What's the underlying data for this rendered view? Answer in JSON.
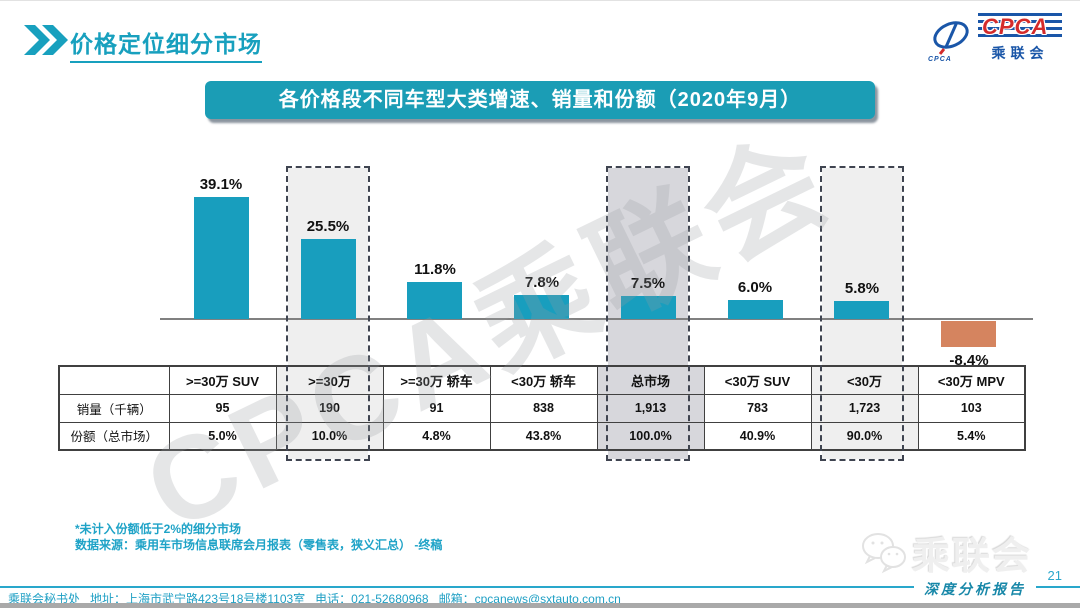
{
  "header": {
    "title": "价格定位细分市场",
    "banner": "各价格段不同车型大类增速、销量和份额（2020年9月）"
  },
  "logo": {
    "latin": "CPCA",
    "emblem_text": "CPCA",
    "chinese": "乘联会"
  },
  "chart_data": {
    "type": "bar",
    "title": "各价格段不同车型大类增速、销量和份额（2020年9月）",
    "categories": [
      ">=30万 SUV",
      ">=30万",
      ">=30万 轿车",
      "<30万 轿车",
      "总市场",
      "<30万 SUV",
      "<30万",
      "<30万 MPV"
    ],
    "values": [
      39.1,
      25.5,
      11.8,
      7.8,
      7.5,
      6.0,
      5.8,
      -8.4
    ],
    "labels": [
      "39.1%",
      "25.5%",
      "11.8%",
      "7.8%",
      "7.5%",
      "6.0%",
      "5.8%",
      "-8.4%"
    ],
    "bar_color": "#189EBE",
    "negative_bar_color": "#D5845F",
    "baseline": 0,
    "grid": false,
    "highlighted_columns": [
      {
        "index": 1,
        "category": ">=30万",
        "shade": "light"
      },
      {
        "index": 4,
        "category": "总市场",
        "shade": "dark"
      },
      {
        "index": 6,
        "category": "<30万",
        "shade": "light"
      }
    ],
    "table": {
      "row_headers": [
        "销量（千辆）",
        "份额（总市场）"
      ],
      "rows": [
        [
          "95",
          "190",
          "91",
          "838",
          "1,913",
          "783",
          "1,723",
          "103"
        ],
        [
          "5.0%",
          "10.0%",
          "4.8%",
          "43.8%",
          "100.0%",
          "40.9%",
          "90.0%",
          "5.4%"
        ]
      ]
    }
  },
  "notes": {
    "line1": "*未计入份额低于2%的细分市场",
    "line2": "数据来源：乘用车市场信息联席会月报表（零售表，狭义汇总）  -终稿"
  },
  "footer": {
    "contact": "乘联会秘书处   地址：上海市武宁路423号18号楼1103室   电话：021-52680968   邮箱：cpcanews@sxtauto.com.cn",
    "report_label": "深度分析报告",
    "page_number": "21"
  },
  "watermarks": {
    "diagonal": "CPCA乘联会",
    "corner": "乘联会"
  },
  "colors": {
    "accent_teal": "#18A0BE",
    "banner_teal": "#1B9DB5",
    "bar_teal": "#189EBE",
    "bar_orange": "#D5845F",
    "highlight_light": "#EFEFEF",
    "highlight_dark": "#D7D7DC",
    "dashed_border": "#3F4450",
    "table_border": "#404040",
    "footer_teal": "#29A7CB",
    "note_teal": "#1FA3C7",
    "logo_blue": "#1A56A8",
    "logo_red": "#D42B2B"
  }
}
